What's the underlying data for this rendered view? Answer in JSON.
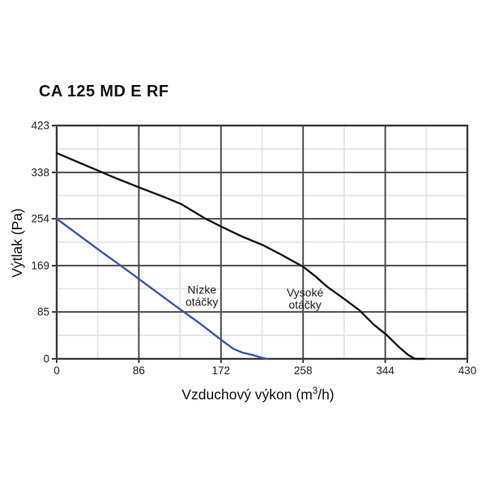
{
  "chart_data": {
    "type": "line",
    "title": "CA 125 MD E RF",
    "ylabel": "Výtlak (Pa)",
    "xlabel": {
      "prefix": "Vzduchový výkon (m",
      "sup": "3",
      "suffix": "/h)"
    },
    "xlim": [
      0,
      430
    ],
    "ylim": [
      0,
      423
    ],
    "x_ticks": [
      0,
      86,
      172,
      258,
      344,
      430
    ],
    "y_ticks": [
      0,
      85,
      169,
      254,
      338,
      423
    ],
    "x_minor_ticks": [
      43,
      129,
      215,
      301,
      387
    ],
    "y_minor_ticks": [
      42.5,
      127,
      211.5,
      296,
      380.5
    ],
    "grid": {
      "major": true,
      "minor": true
    },
    "legend_position": "inline-annotations",
    "colors": {
      "background": "#ffffff",
      "border": "#3a3a3e",
      "major_grid": "#4e4e52",
      "minor_grid": "#e4e4e8",
      "text": "#222225",
      "high_speed_curve": "#16161a",
      "low_speed_curve": "#3c57a8"
    },
    "series": [
      {
        "name": "Vysoké otáčky",
        "color": "#16161a",
        "points": [
          [
            0,
            373
          ],
          [
            30,
            351
          ],
          [
            60,
            329
          ],
          [
            86,
            311
          ],
          [
            110,
            295
          ],
          [
            130,
            281
          ],
          [
            156,
            254
          ],
          [
            172,
            240
          ],
          [
            195,
            221
          ],
          [
            215,
            207
          ],
          [
            235,
            189
          ],
          [
            258,
            167
          ],
          [
            270,
            151
          ],
          [
            283,
            131
          ],
          [
            300,
            110
          ],
          [
            317,
            88
          ],
          [
            332,
            62
          ],
          [
            345,
            44
          ],
          [
            358,
            22
          ],
          [
            368,
            7
          ],
          [
            375,
            0
          ],
          [
            385,
            0
          ]
        ]
      },
      {
        "name": "Nízke otáčky",
        "color": "#3c57a8",
        "points": [
          [
            0,
            254
          ],
          [
            25,
            222
          ],
          [
            50,
            190
          ],
          [
            75,
            159
          ],
          [
            100,
            127
          ],
          [
            125,
            95
          ],
          [
            150,
            64
          ],
          [
            165,
            44
          ],
          [
            175,
            31
          ],
          [
            185,
            18
          ],
          [
            195,
            11
          ],
          [
            205,
            7
          ],
          [
            213,
            3
          ],
          [
            220,
            0
          ]
        ]
      }
    ],
    "annotations": [
      {
        "lines": [
          "Nízke",
          "otáčky"
        ],
        "x": 152,
        "y": 112
      },
      {
        "lines": [
          "Vysoké",
          "otáčky"
        ],
        "x": 260,
        "y": 107
      }
    ]
  }
}
